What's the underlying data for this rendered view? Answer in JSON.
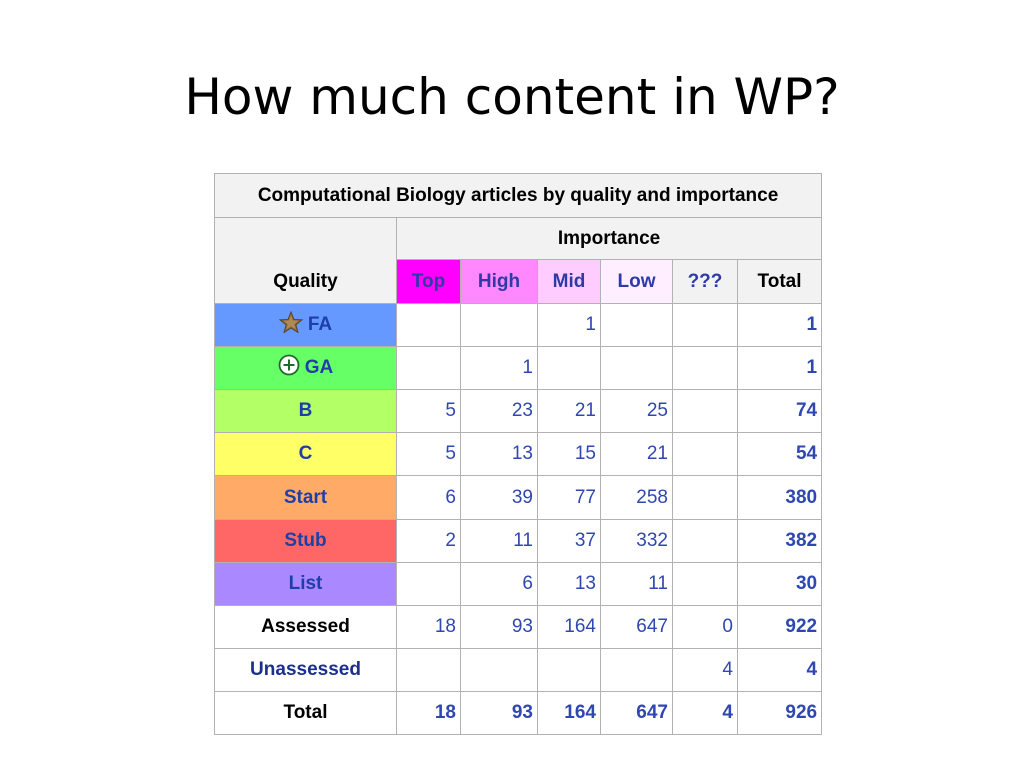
{
  "slide": {
    "title": "How much content in WP?"
  },
  "table": {
    "caption": "Computational Biology articles by quality and importance",
    "importance_label": "Importance",
    "quality_label": "Quality",
    "columns": [
      {
        "label": "Top",
        "color": "#ff00ff"
      },
      {
        "label": "High",
        "color": "#ff88ff"
      },
      {
        "label": "Mid",
        "color": "#ffccff"
      },
      {
        "label": "Low",
        "color": "#ffeeff"
      },
      {
        "label": "???",
        "color": "#f2f2f2"
      },
      {
        "label": "Total",
        "color": "#f2f2f2"
      }
    ],
    "rows": [
      {
        "label": "FA",
        "icon": "featured-star-icon",
        "color": "#6699ff",
        "values": [
          "",
          "",
          "1",
          "",
          "",
          "1"
        ]
      },
      {
        "label": "GA",
        "icon": "good-article-plus-icon",
        "color": "#66ff66",
        "values": [
          "",
          "1",
          "",
          "",
          "",
          "1"
        ]
      },
      {
        "label": "B",
        "icon": "",
        "color": "#b2ff66",
        "values": [
          "5",
          "23",
          "21",
          "25",
          "",
          "74"
        ]
      },
      {
        "label": "C",
        "icon": "",
        "color": "#ffff66",
        "values": [
          "5",
          "13",
          "15",
          "21",
          "",
          "54"
        ]
      },
      {
        "label": "Start",
        "icon": "",
        "color": "#ffaa66",
        "values": [
          "6",
          "39",
          "77",
          "258",
          "",
          "380"
        ]
      },
      {
        "label": "Stub",
        "icon": "",
        "color": "#ff6666",
        "values": [
          "2",
          "11",
          "37",
          "332",
          "",
          "382"
        ]
      },
      {
        "label": "List",
        "icon": "",
        "color": "#aa88ff",
        "values": [
          "",
          "6",
          "13",
          "11",
          "",
          "30"
        ]
      },
      {
        "label": "Assessed",
        "icon": "",
        "color": "#ffffff",
        "values": [
          "18",
          "93",
          "164",
          "647",
          "0",
          "922"
        ]
      },
      {
        "label": "Unassessed",
        "icon": "",
        "color": "#ffffff",
        "values": [
          "",
          "",
          "",
          "",
          "4",
          "4"
        ]
      },
      {
        "label": "Total",
        "icon": "",
        "color": "#ffffff",
        "values": [
          "18",
          "93",
          "164",
          "647",
          "4",
          "926"
        ]
      }
    ]
  }
}
